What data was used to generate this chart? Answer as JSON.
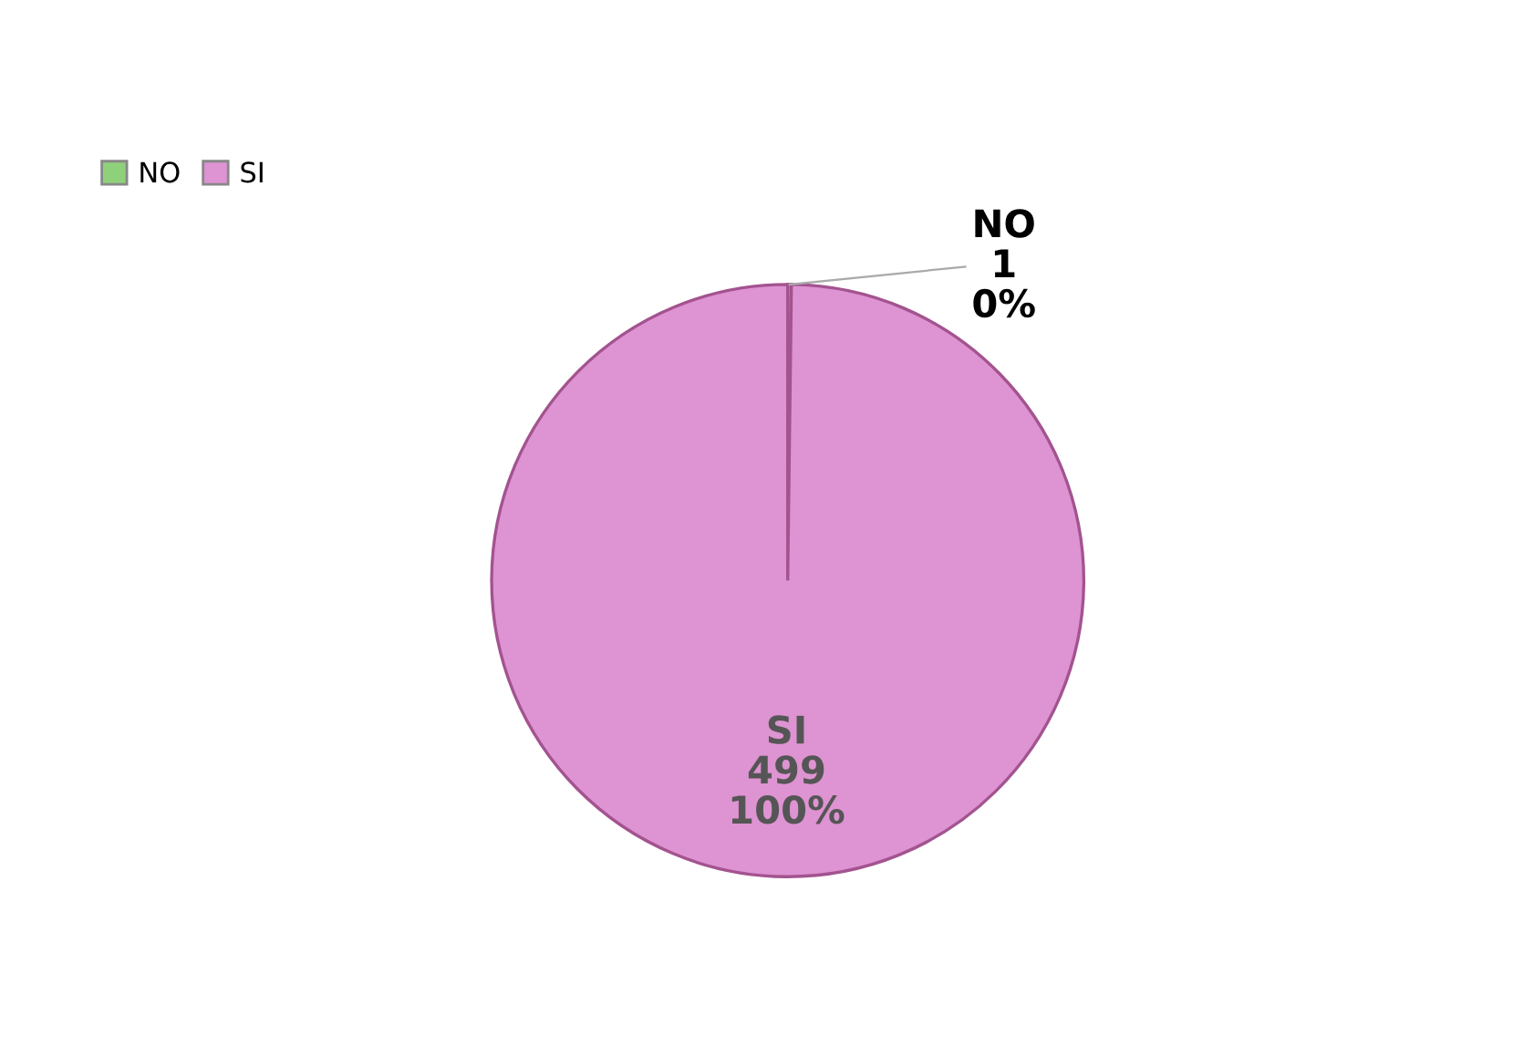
{
  "chart_data": {
    "type": "pie",
    "categories": [
      "NO",
      "SI"
    ],
    "values": [
      1,
      499
    ],
    "colors": [
      "#8fd17a",
      "#de93d2"
    ],
    "value_labels": [
      "1",
      "499"
    ],
    "annotations": [
      "0%",
      "100%"
    ],
    "legend": "top left"
  }
}
